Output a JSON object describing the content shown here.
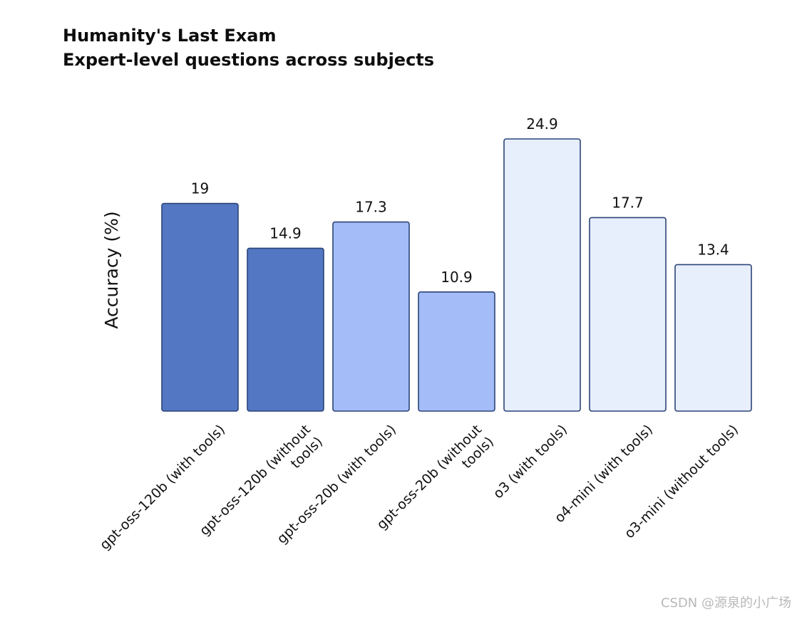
{
  "chart_data": {
    "type": "bar",
    "title": "Humanity's Last Exam",
    "subtitle": "Expert-level questions across subjects",
    "xlabel": "",
    "ylabel": "Accuracy (%)",
    "ylim": [
      0,
      25
    ],
    "grid": false,
    "legend": "none",
    "categories": [
      [
        "gpt-oss-120b (with tools)"
      ],
      [
        "gpt-oss-120b (without",
        "tools)"
      ],
      [
        "gpt-oss-20b (with tools)"
      ],
      [
        "gpt-oss-20b (without",
        "tools)"
      ],
      [
        "o3 (with tools)"
      ],
      [
        "o4-mini (with tools)"
      ],
      [
        "o3-mini (without tools)"
      ]
    ],
    "values": [
      19,
      14.9,
      17.3,
      10.9,
      24.9,
      17.7,
      13.4
    ],
    "value_labels": [
      "19",
      "14.9",
      "17.3",
      "10.9",
      "24.9",
      "17.7",
      "13.4"
    ],
    "bar_colors": [
      "#5377c2",
      "#5377c2",
      "#a4bcf8",
      "#a4bcf8",
      "#e8effc",
      "#e8effc",
      "#e8effc"
    ],
    "bar_edge_color": "#2b4478"
  },
  "watermark": "CSDN @源泉的小广场"
}
